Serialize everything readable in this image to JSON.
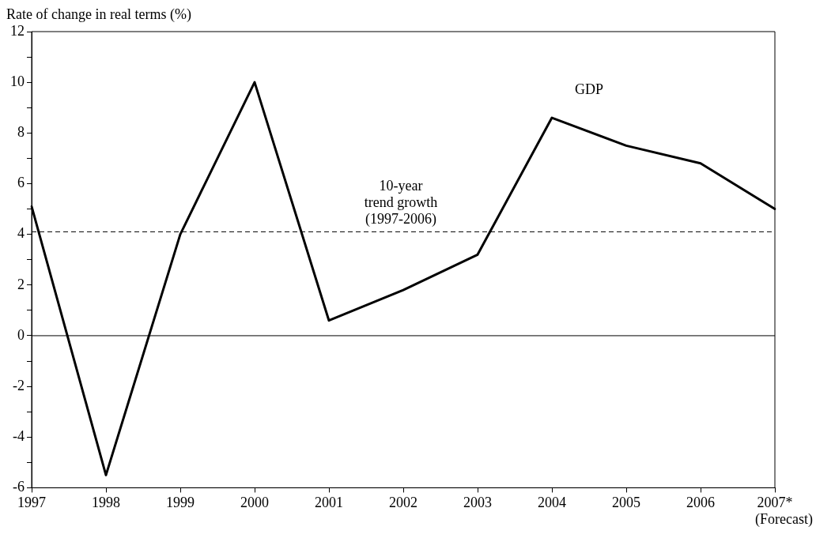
{
  "chart_data": {
    "type": "line",
    "ylabel": "Rate of change in real terms (%)",
    "categories": [
      "1997",
      "1998",
      "1999",
      "2000",
      "2001",
      "2002",
      "2003",
      "2004",
      "2005",
      "2006",
      "2007*"
    ],
    "series": [
      {
        "name": "GDP",
        "color": "#000000",
        "values": [
          5.1,
          -5.5,
          4.0,
          10.0,
          0.6,
          1.8,
          3.2,
          8.6,
          7.5,
          6.8,
          5.0
        ]
      }
    ],
    "ylim": [
      -6,
      12
    ],
    "yticks": [
      -6,
      {
        "value": -5,
        "label": null
      },
      -4,
      {
        "value": -3,
        "label": null
      },
      -2,
      {
        "value": -1,
        "label": null
      },
      0,
      {
        "value": 1,
        "label": null
      },
      2,
      {
        "value": 3,
        "label": null
      },
      4,
      {
        "value": 5,
        "label": null
      },
      6,
      {
        "value": 7,
        "label": null
      },
      8,
      {
        "value": 9,
        "label": null
      },
      10,
      {
        "value": 11,
        "label": null
      },
      12
    ],
    "ref_lines": [
      {
        "axis": "y",
        "value": 0,
        "label": null,
        "color": "#000000",
        "line_style": "solid"
      },
      {
        "axis": "y",
        "value": 4.1,
        "label": "10-year\ntrend growth\n(1997-2006)",
        "color": "#000000",
        "line_style": "dashed"
      }
    ],
    "annotations": [
      "(Forecast)"
    ],
    "legend": false,
    "grid": false,
    "marker": "none",
    "line_style": "solid"
  }
}
